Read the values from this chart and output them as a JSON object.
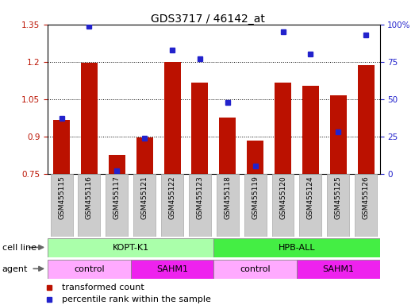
{
  "title": "GDS3717 / 46142_at",
  "samples": [
    "GSM455115",
    "GSM455116",
    "GSM455117",
    "GSM455121",
    "GSM455122",
    "GSM455123",
    "GSM455118",
    "GSM455119",
    "GSM455120",
    "GSM455124",
    "GSM455125",
    "GSM455126"
  ],
  "red_values": [
    0.965,
    1.195,
    0.825,
    0.895,
    1.2,
    1.115,
    0.975,
    0.885,
    1.115,
    1.105,
    1.065,
    1.185
  ],
  "blue_values_pct": [
    37,
    99,
    2,
    24,
    83,
    77,
    48,
    5,
    95,
    80,
    28,
    93
  ],
  "ylim_left": [
    0.75,
    1.35
  ],
  "ylim_right": [
    0,
    100
  ],
  "yticks_left": [
    0.75,
    0.9,
    1.05,
    1.2,
    1.35
  ],
  "ytick_labels_left": [
    "0.75",
    "0.9",
    "1.05",
    "1.2",
    "1.35"
  ],
  "yticks_right": [
    0,
    25,
    50,
    75,
    100
  ],
  "ytick_labels_right": [
    "0",
    "25",
    "50",
    "75",
    "100%"
  ],
  "bar_bottom": 0.75,
  "bar_color": "#bb1100",
  "dot_color": "#2222cc",
  "cell_line_data": [
    {
      "label": "KOPT-K1",
      "start": 0,
      "end": 6,
      "color": "#aaffaa"
    },
    {
      "label": "HPB-ALL",
      "start": 6,
      "end": 12,
      "color": "#44ee44"
    }
  ],
  "agent_data": [
    {
      "label": "control",
      "start": 0,
      "end": 3,
      "color": "#ffaaff"
    },
    {
      "label": "SAHM1",
      "start": 3,
      "end": 6,
      "color": "#ee22ee"
    },
    {
      "label": "control",
      "start": 6,
      "end": 9,
      "color": "#ffaaff"
    },
    {
      "label": "SAHM1",
      "start": 9,
      "end": 12,
      "color": "#ee22ee"
    }
  ],
  "legend_red_label": "transformed count",
  "legend_blue_label": "percentile rank within the sample",
  "cell_line_label": "cell line",
  "agent_label": "agent",
  "sample_bg_color": "#cccccc",
  "sample_edge_color": "#aaaaaa",
  "title_fontsize": 10,
  "tick_fontsize": 7.5,
  "label_fontsize": 8
}
